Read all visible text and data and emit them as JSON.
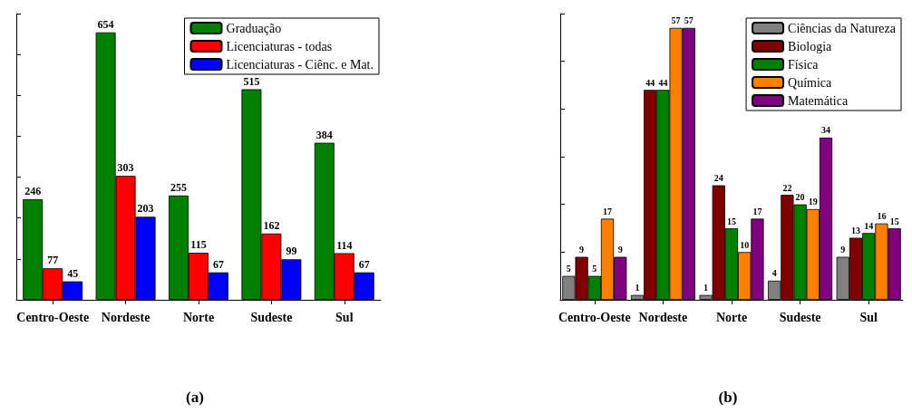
{
  "chart_data": [
    {
      "type": "bar",
      "categories": [
        "Centro-Oeste",
        "Nordeste",
        "Norte",
        "Sudeste",
        "Sul"
      ],
      "series": [
        {
          "name": "Graduação",
          "color": "#008000",
          "values": [
            246,
            654,
            255,
            515,
            384
          ]
        },
        {
          "name": "Licenciaturas - todas",
          "color": "#ff0000",
          "values": [
            77,
            303,
            115,
            162,
            114
          ]
        },
        {
          "name": "Licenciaturas - Ciênc. e Mat.",
          "color": "#0000ff",
          "values": [
            45,
            203,
            67,
            99,
            67
          ]
        }
      ],
      "data_labels": true,
      "legend": "top right",
      "grid": false,
      "tick_labels": "x",
      "annotations": [
        "(a)"
      ]
    },
    {
      "type": "bar",
      "categories": [
        "Centro-Oeste",
        "Nordeste",
        "Norte",
        "Sudeste",
        "Sul"
      ],
      "series": [
        {
          "name": "Ciências da Natureza",
          "color": "#808080",
          "values": [
            5,
            1,
            1,
            4,
            9
          ]
        },
        {
          "name": "Biologia",
          "color": "#800000",
          "values": [
            9,
            44,
            24,
            22,
            13
          ]
        },
        {
          "name": "Física",
          "color": "#008000",
          "values": [
            5,
            44,
            15,
            20,
            14
          ]
        },
        {
          "name": "Química",
          "color": "#ff8000",
          "values": [
            17,
            57,
            10,
            19,
            16
          ]
        },
        {
          "name": "Matemática",
          "color": "#800080",
          "values": [
            9,
            57,
            17,
            34,
            15
          ]
        }
      ],
      "data_labels": true,
      "legend": "top right",
      "grid": false,
      "tick_labels": "x",
      "annotations": [
        "(b)"
      ]
    }
  ]
}
